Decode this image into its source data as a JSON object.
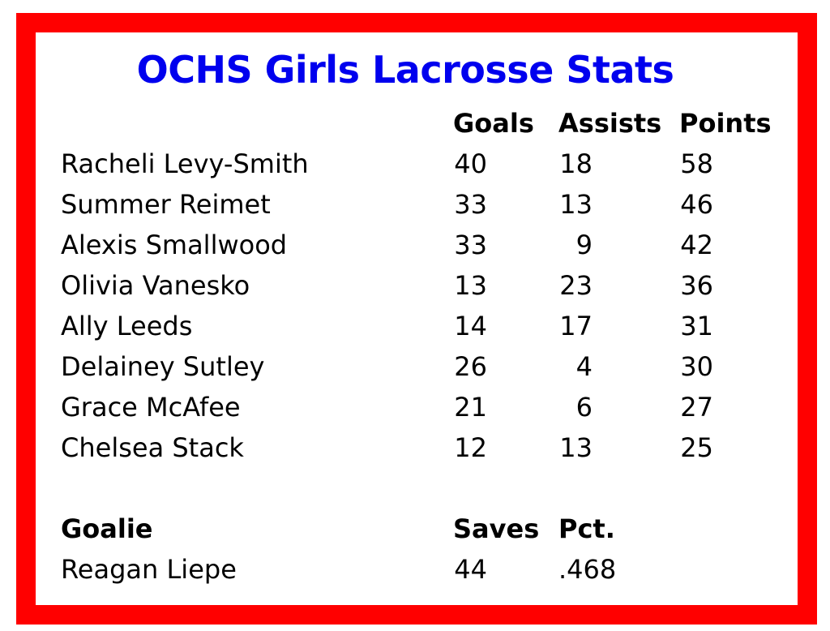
{
  "title": "OCHS Girls Lacrosse Stats",
  "colors": {
    "border": "#ff0000",
    "title": "#0000ee"
  },
  "scorers": {
    "headers": [
      "Goals",
      "Assists",
      "Points"
    ],
    "rows": [
      {
        "name": "Racheli Levy-Smith",
        "goals": "40",
        "assists": "18",
        "points": "58"
      },
      {
        "name": "Summer Reimet",
        "goals": "33",
        "assists": "13",
        "points": "46"
      },
      {
        "name": "Alexis Smallwood",
        "goals": "33",
        "assists": "9",
        "points": "42"
      },
      {
        "name": "Olivia Vanesko",
        "goals": "13",
        "assists": "23",
        "points": "36"
      },
      {
        "name": "Ally Leeds",
        "goals": "14",
        "assists": "17",
        "points": "31"
      },
      {
        "name": "Delainey Sutley",
        "goals": "26",
        "assists": "4",
        "points": "30"
      },
      {
        "name": "Grace McAfee",
        "goals": "21",
        "assists": "6",
        "points": "27"
      },
      {
        "name": "Chelsea Stack",
        "goals": "12",
        "assists": "13",
        "points": "25"
      }
    ]
  },
  "goalie": {
    "headers": [
      "Goalie",
      "Saves",
      "Pct."
    ],
    "rows": [
      {
        "name": "Reagan Liepe",
        "saves": "44",
        "pct": ".468"
      }
    ]
  }
}
